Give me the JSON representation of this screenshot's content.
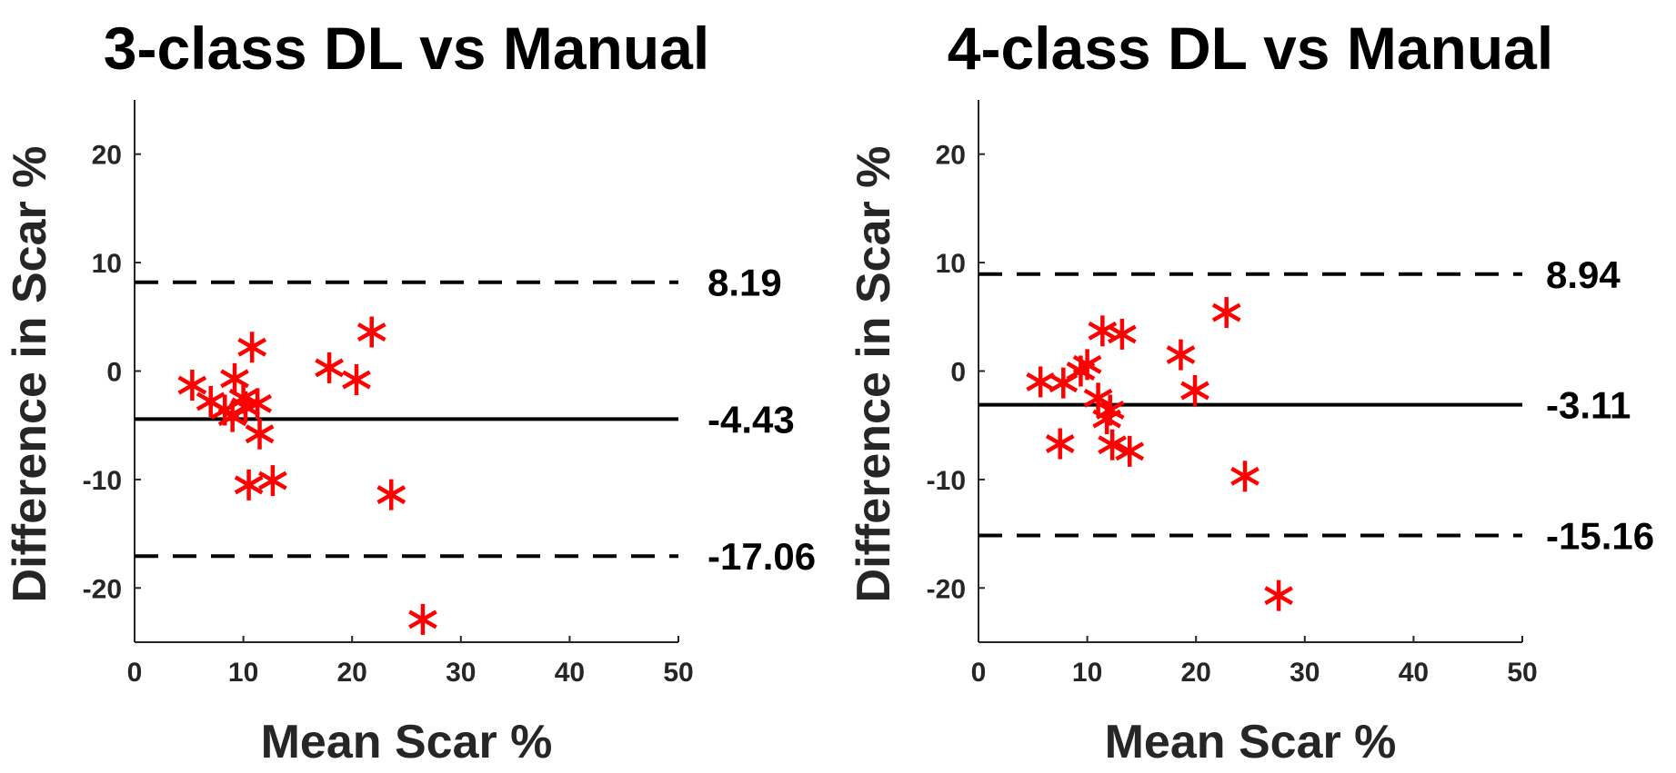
{
  "colors": {
    "marker": "#ff0000",
    "line": "#000000",
    "axis": "#262626",
    "background": "#ffffff"
  },
  "chart_data": [
    {
      "type": "scatter",
      "title": "3-class DL vs Manual",
      "xlabel": "Mean Scar %",
      "ylabel": "Difference in Scar %",
      "xlim": [
        0,
        50
      ],
      "ylim": [
        -25,
        25
      ],
      "xticks": [
        0,
        10,
        20,
        30,
        40,
        50
      ],
      "yticks": [
        -20,
        -10,
        0,
        10,
        20
      ],
      "grid": false,
      "marker": "asterisk",
      "mean_line": {
        "value": -4.43,
        "label": "-4.43",
        "style": "solid"
      },
      "loa_upper": {
        "value": 8.19,
        "label": "8.19",
        "style": "dashed"
      },
      "loa_lower": {
        "value": -17.06,
        "label": "-17.06",
        "style": "dashed"
      },
      "points": [
        {
          "x": 5.3,
          "y": -1.3
        },
        {
          "x": 7.0,
          "y": -2.8
        },
        {
          "x": 8.3,
          "y": -3.6
        },
        {
          "x": 9.0,
          "y": -4.2
        },
        {
          "x": 9.2,
          "y": -0.7
        },
        {
          "x": 10.0,
          "y": -2.5
        },
        {
          "x": 10.2,
          "y": -3.3
        },
        {
          "x": 10.5,
          "y": -10.5
        },
        {
          "x": 10.8,
          "y": 2.2
        },
        {
          "x": 11.3,
          "y": -3.0
        },
        {
          "x": 11.5,
          "y": -5.8
        },
        {
          "x": 12.7,
          "y": -10.1
        },
        {
          "x": 17.9,
          "y": 0.3
        },
        {
          "x": 20.4,
          "y": -0.8
        },
        {
          "x": 21.8,
          "y": 3.6
        },
        {
          "x": 23.6,
          "y": -11.4
        },
        {
          "x": 26.5,
          "y": -22.9
        }
      ]
    },
    {
      "type": "scatter",
      "title": "4-class DL vs Manual",
      "xlabel": "Mean Scar %",
      "ylabel": "Difference in Scar %",
      "xlim": [
        0,
        50
      ],
      "ylim": [
        -25,
        25
      ],
      "xticks": [
        0,
        10,
        20,
        30,
        40,
        50
      ],
      "yticks": [
        -20,
        -10,
        0,
        10,
        20
      ],
      "grid": false,
      "marker": "asterisk",
      "mean_line": {
        "value": -3.11,
        "label": "-3.11",
        "style": "solid"
      },
      "loa_upper": {
        "value": 8.94,
        "label": "8.94",
        "style": "dashed"
      },
      "loa_lower": {
        "value": -15.16,
        "label": "-15.16",
        "style": "dashed"
      },
      "points": [
        {
          "x": 5.7,
          "y": -1.0
        },
        {
          "x": 7.8,
          "y": -1.1
        },
        {
          "x": 7.5,
          "y": -6.7
        },
        {
          "x": 9.4,
          "y": 0.0
        },
        {
          "x": 10.0,
          "y": 0.6
        },
        {
          "x": 11.0,
          "y": -2.5
        },
        {
          "x": 11.4,
          "y": 3.7
        },
        {
          "x": 11.8,
          "y": -4.4
        },
        {
          "x": 12.1,
          "y": -3.6
        },
        {
          "x": 12.3,
          "y": -6.8
        },
        {
          "x": 13.2,
          "y": 3.4
        },
        {
          "x": 13.9,
          "y": -7.4
        },
        {
          "x": 18.6,
          "y": 1.5
        },
        {
          "x": 19.9,
          "y": -1.8
        },
        {
          "x": 22.8,
          "y": 5.4
        },
        {
          "x": 24.5,
          "y": -9.7
        },
        {
          "x": 27.6,
          "y": -20.7
        }
      ]
    }
  ]
}
